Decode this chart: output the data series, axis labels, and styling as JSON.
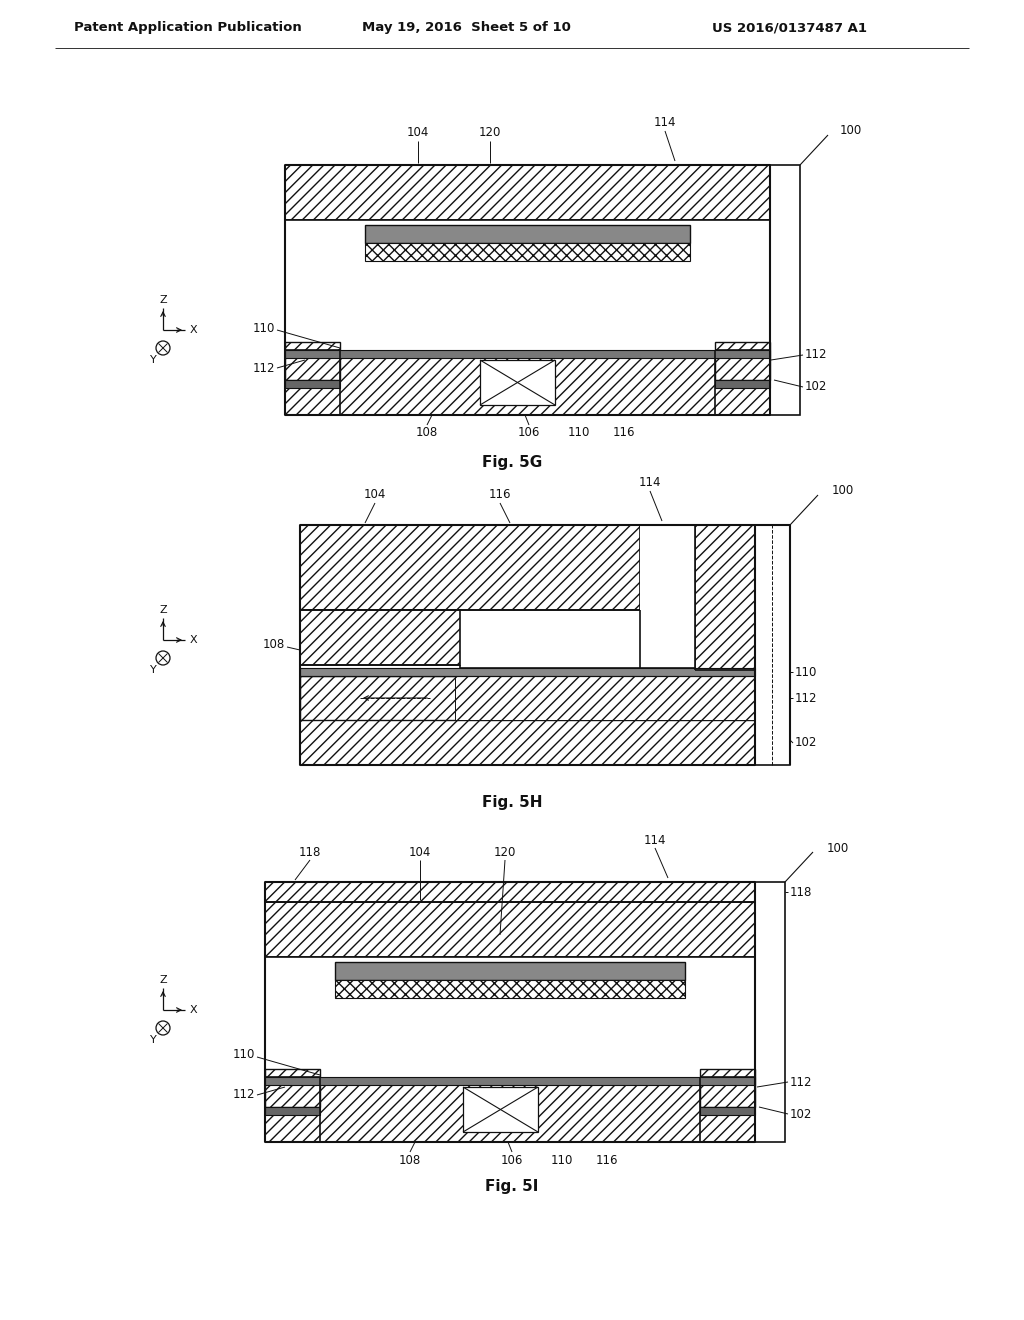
{
  "bg": "#ffffff",
  "lc": "#111111",
  "gray_fill": "#888888",
  "header_left": "Patent Application Publication",
  "header_mid": "May 19, 2016  Sheet 5 of 10",
  "header_right": "US 2016/0137487 A1",
  "fig5g": "Fig. 5G",
  "fig5h": "Fig. 5H",
  "fig5i": "Fig. 5I"
}
